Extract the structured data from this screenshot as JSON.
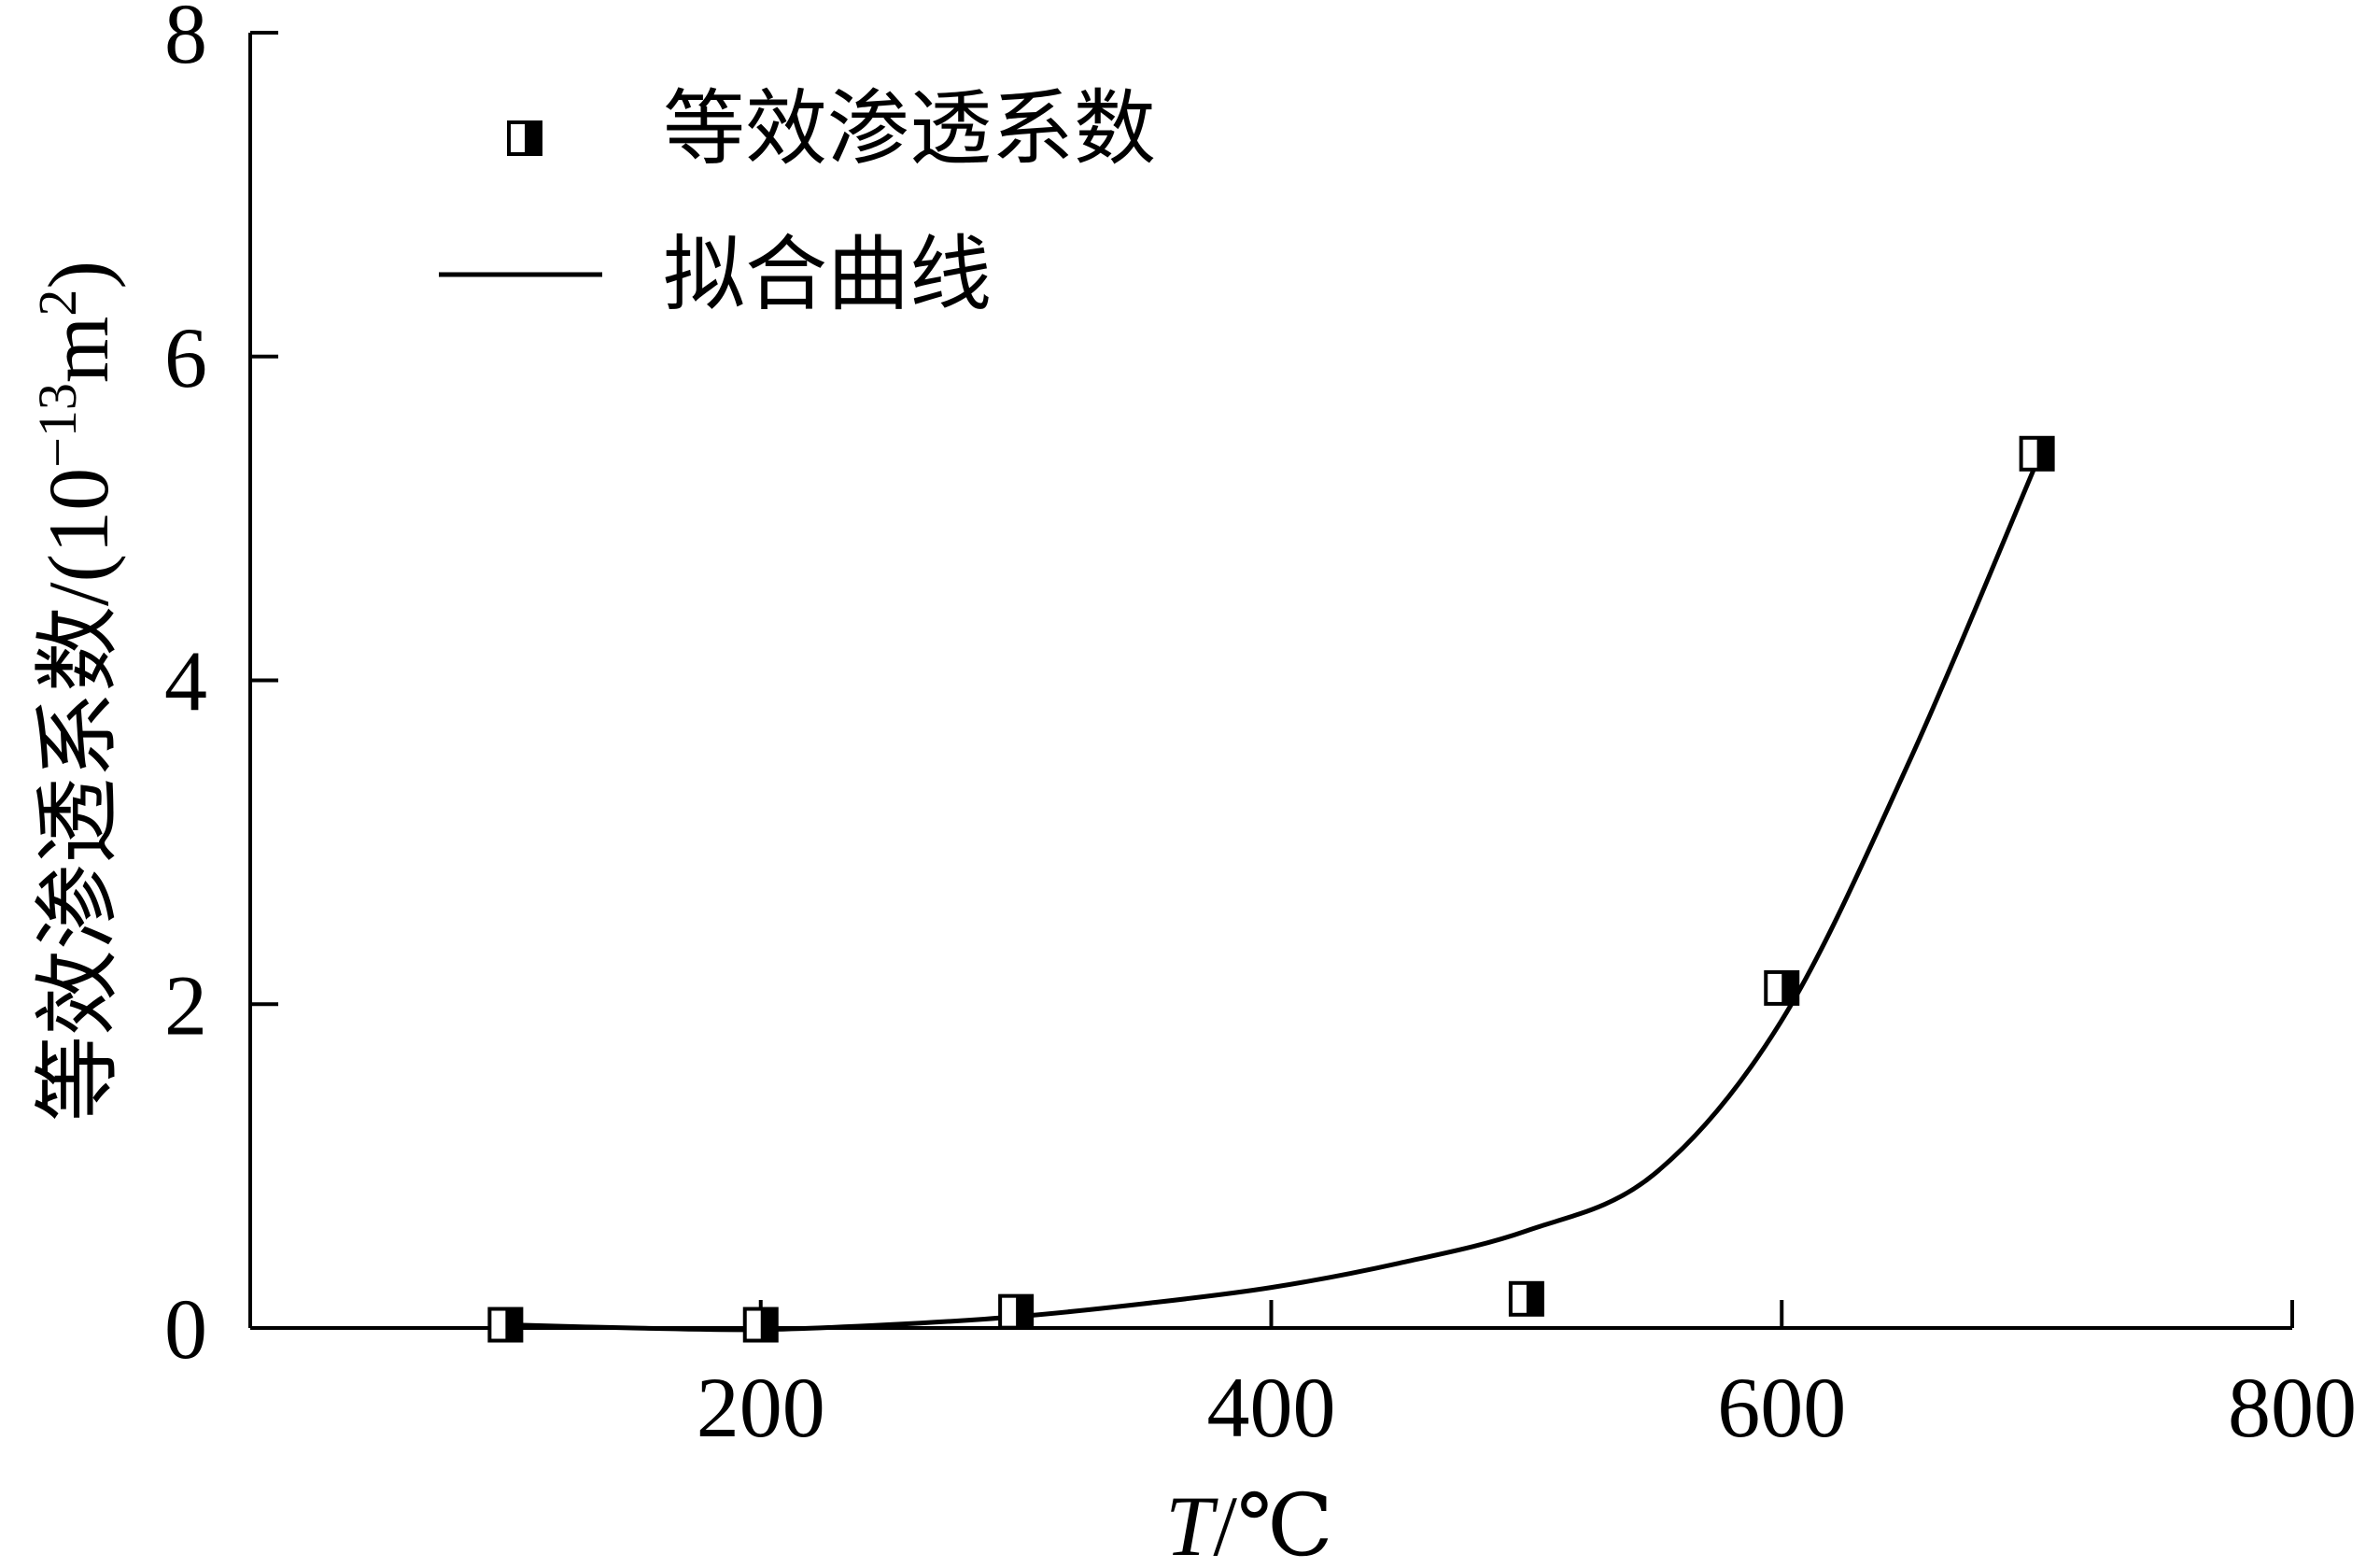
{
  "chart_data": {
    "type": "scatter",
    "xlabel_var": "T",
    "xlabel_unit": "/℃",
    "ylabel_text": "等效渗透系数/(10",
    "ylabel_exp": "−13",
    "ylabel_unit": "m",
    "ylabel_unit_exp": "2",
    "ylabel_close": ")",
    "xlim": [
      0,
      800
    ],
    "ylim": [
      0,
      8
    ],
    "x_ticks": [
      200,
      400,
      600,
      800
    ],
    "y_ticks": [
      0,
      2,
      4,
      6,
      8
    ],
    "grid": false,
    "legend_position": "top-left",
    "series": [
      {
        "name": "等效渗透系数",
        "kind": "markers",
        "x": [
          100,
          200,
          300,
          500,
          600,
          700
        ],
        "y": [
          0.02,
          0.02,
          0.1,
          0.18,
          2.1,
          5.4
        ]
      },
      {
        "name": "拟合曲线",
        "kind": "line",
        "x": [
          100,
          150,
          200,
          250,
          300,
          350,
          400,
          450,
          500,
          550,
          600,
          650,
          700
        ],
        "y": [
          0.02,
          0.0,
          -0.01,
          0.02,
          0.07,
          0.15,
          0.25,
          0.4,
          0.6,
          0.95,
          1.9,
          3.5,
          5.35
        ]
      }
    ]
  }
}
